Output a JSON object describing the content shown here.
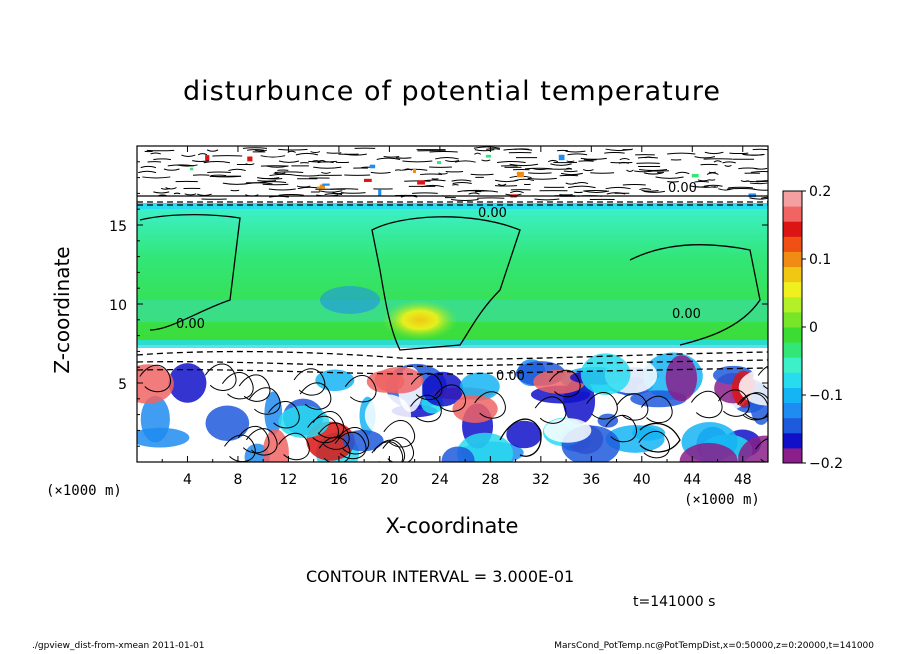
{
  "chart_data": {
    "type": "heatmap",
    "title": "disturbunce of potential temperature",
    "xlabel": "X-coordinate",
    "ylabel": "Z-coordinate",
    "x_unit": "(×1000 m)",
    "xlim": [
      0,
      50
    ],
    "ylim": [
      0,
      20
    ],
    "x_ticks": [
      4,
      8,
      12,
      16,
      20,
      24,
      28,
      32,
      36,
      40,
      44,
      48
    ],
    "y_ticks": [
      5,
      10,
      15
    ],
    "colorbar": {
      "range": [
        -0.2,
        0.2
      ],
      "tick_labels": [
        "0.2",
        "0.1",
        "0",
        "−0.1",
        "−0.2"
      ],
      "tick_values": [
        0.2,
        0.1,
        0,
        -0.1,
        -0.2
      ],
      "colors": [
        "#8a1e8a",
        "#1010c8",
        "#1e5adc",
        "#1e8cf0",
        "#14b4f5",
        "#28dcf0",
        "#3cf0c8",
        "#32e678",
        "#3cdc32",
        "#78e628",
        "#b4f028",
        "#f0f01e",
        "#f0c814",
        "#f08c14",
        "#f05014",
        "#dc1414",
        "#f06464",
        "#f5a0a0"
      ]
    },
    "contour_interval": "CONTOUR INTERVAL = 3.000E-01",
    "contour_labels": [
      "0.00",
      "0.00",
      "0.00",
      "0.00",
      "0.00"
    ],
    "time": "t=141000 s",
    "footer_left": "./gpview_dist-from-xmean   2011-01-01",
    "footer_right": "MarsCond_PotTemp.nc@PotTempDist,x=0:50000,z=0:20000,t=141000"
  }
}
